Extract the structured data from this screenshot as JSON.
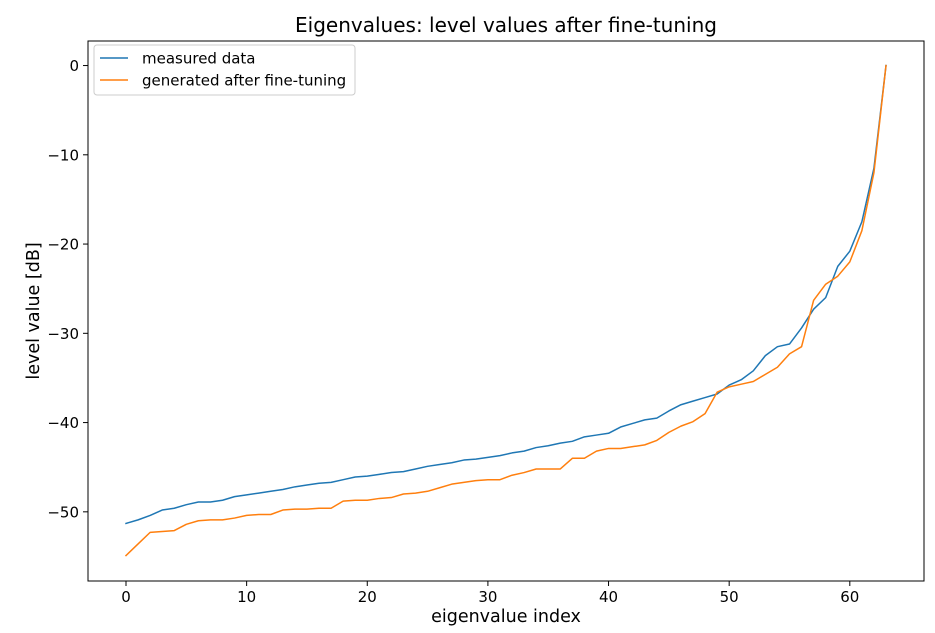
{
  "chart_data": {
    "type": "line",
    "title": "Eigenvalues: level values after fine-tuning",
    "xlabel": "eigenvalue index",
    "ylabel": "level value [dB]",
    "xlim": [
      -3.15,
      66.15
    ],
    "ylim": [
      -57.75,
      2.75
    ],
    "xticks": [
      0,
      10,
      20,
      30,
      40,
      50,
      60
    ],
    "yticks": [
      0,
      -10,
      -20,
      -30,
      -40,
      -50
    ],
    "ytick_labels": [
      "0",
      "−10",
      "−20",
      "−30",
      "−40",
      "−50"
    ],
    "grid": false,
    "legend_position": "top-left",
    "x": [
      0,
      1,
      2,
      3,
      4,
      5,
      6,
      7,
      8,
      9,
      10,
      11,
      12,
      13,
      14,
      15,
      16,
      17,
      18,
      19,
      20,
      21,
      22,
      23,
      24,
      25,
      26,
      27,
      28,
      29,
      30,
      31,
      32,
      33,
      34,
      35,
      36,
      37,
      38,
      39,
      40,
      41,
      42,
      43,
      44,
      45,
      46,
      47,
      48,
      49,
      50,
      51,
      52,
      53,
      54,
      55,
      56,
      57,
      58,
      59,
      60,
      61,
      62,
      63
    ],
    "series": [
      {
        "name": "measured data",
        "color": "#1f77b4",
        "values": [
          -51.3,
          -50.9,
          -50.4,
          -49.8,
          -49.6,
          -49.2,
          -48.9,
          -48.9,
          -48.7,
          -48.3,
          -48.1,
          -47.9,
          -47.7,
          -47.5,
          -47.2,
          -47.0,
          -46.8,
          -46.7,
          -46.4,
          -46.1,
          -46.0,
          -45.8,
          -45.6,
          -45.5,
          -45.2,
          -44.9,
          -44.7,
          -44.5,
          -44.2,
          -44.1,
          -43.9,
          -43.7,
          -43.4,
          -43.2,
          -42.8,
          -42.6,
          -42.3,
          -42.1,
          -41.6,
          -41.4,
          -41.2,
          -40.5,
          -40.1,
          -39.7,
          -39.5,
          -38.7,
          -38.0,
          -37.6,
          -37.2,
          -36.8,
          -35.8,
          -35.2,
          -34.2,
          -32.5,
          -31.5,
          -31.2,
          -29.4,
          -27.3,
          -26.0,
          -22.5,
          -20.8,
          -17.5,
          -11.5,
          0.0
        ]
      },
      {
        "name": "generated after fine-tuning",
        "color": "#ff7f0e",
        "values": [
          -54.9,
          -53.6,
          -52.3,
          -52.2,
          -52.1,
          -51.4,
          -51.0,
          -50.9,
          -50.9,
          -50.7,
          -50.4,
          -50.3,
          -50.3,
          -49.8,
          -49.7,
          -49.7,
          -49.6,
          -49.6,
          -48.8,
          -48.7,
          -48.7,
          -48.5,
          -48.4,
          -48.0,
          -47.9,
          -47.7,
          -47.3,
          -46.9,
          -46.7,
          -46.5,
          -46.4,
          -46.4,
          -45.9,
          -45.6,
          -45.2,
          -45.2,
          -45.2,
          -44.0,
          -44.0,
          -43.2,
          -42.9,
          -42.9,
          -42.7,
          -42.5,
          -42.0,
          -41.1,
          -40.4,
          -39.9,
          -39.0,
          -36.6,
          -36.0,
          -35.7,
          -35.4,
          -34.6,
          -33.8,
          -32.3,
          -31.5,
          -26.3,
          -24.5,
          -23.6,
          -22.0,
          -18.5,
          -12.0,
          0.0
        ]
      }
    ]
  }
}
